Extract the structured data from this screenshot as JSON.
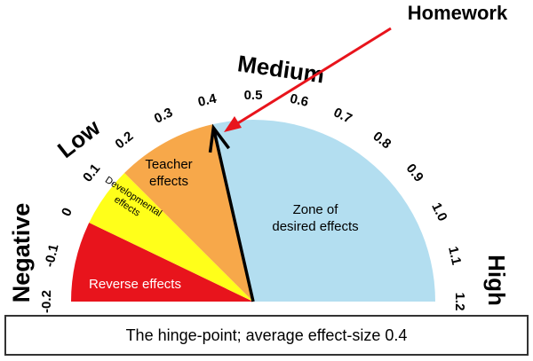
{
  "annotation": "Homework",
  "regions": {
    "negative": "Negative",
    "low": "Low",
    "medium": "Medium",
    "high": "High"
  },
  "scale": [
    "-0.2",
    "-0.1",
    "0",
    "0.1",
    "0.2",
    "0.3",
    "0.4",
    "0.5",
    "0.6",
    "0.7",
    "0.8",
    "0.9",
    "1.0",
    "1.1",
    "1.2"
  ],
  "zones": {
    "reverse": [
      "Reverse effects"
    ],
    "developmental": [
      "Developmental",
      "effects"
    ],
    "teacher": [
      "Teacher",
      "effects"
    ],
    "desired": [
      "Zone of",
      "desired effects"
    ]
  },
  "caption": "The hinge-point; average effect-size 0.4"
}
